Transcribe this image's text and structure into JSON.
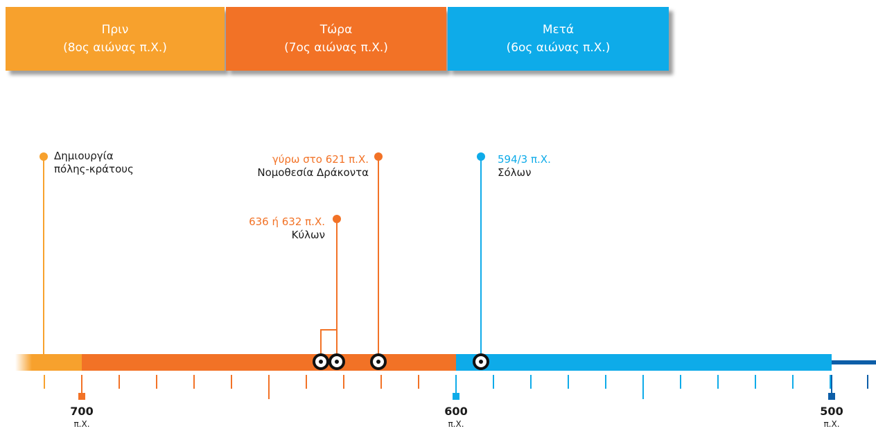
{
  "periods": [
    {
      "label": "Πριν",
      "sub": "(8ος αιώνας π.Χ.)",
      "color": "#f7a12d"
    },
    {
      "label": "Τώρα",
      "sub": "(7ος αιώνας π.Χ.)",
      "color": "#f27226"
    },
    {
      "label": "Μετά",
      "sub": "(6ος αιώνας π.Χ.)",
      "color": "#0eabe9"
    }
  ],
  "events": [
    {
      "date": "",
      "name": "Δημιουργία\nπόλης-κράτους",
      "color": "#f7a12d"
    },
    {
      "date": "636 ή 632 π.Χ.",
      "name": "Κύλων",
      "color": "#f27226"
    },
    {
      "date": "γύρω στο 621 π.Χ.",
      "name": "Νομοθεσία Δράκοντα",
      "color": "#f27226"
    },
    {
      "date": "594/3 π.Χ.",
      "name": "Σόλων",
      "color": "#0eabe9"
    }
  ],
  "axis": {
    "years": [
      {
        "value": "700",
        "era": "π.Χ.",
        "color": "#f27226"
      },
      {
        "value": "600",
        "era": "π.Χ.",
        "color": "#0eabe9"
      },
      {
        "value": "500",
        "era": "π.Χ.",
        "color": "#0d5ea8"
      }
    ],
    "colors": {
      "before": "#f7a12d",
      "now": "#f27226",
      "after": "#0eabe9",
      "tail": "#0d5ea8"
    }
  }
}
